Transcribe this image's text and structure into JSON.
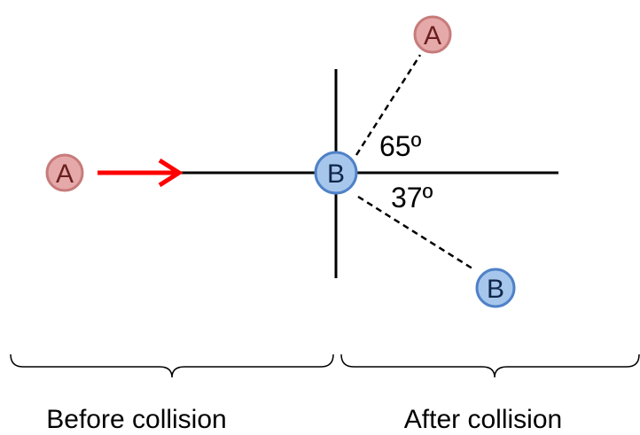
{
  "balls": {
    "a_before": {
      "label": "A"
    },
    "b_collision": {
      "label": "B"
    },
    "a_after": {
      "label": "A"
    },
    "b_after": {
      "label": "B"
    }
  },
  "angles": {
    "a_angle": "65º",
    "b_angle": "37º"
  },
  "captions": {
    "before": "Before collision",
    "after": "After collision"
  },
  "colors": {
    "ball_a_fill": "#e6a9a9",
    "ball_a_stroke": "#c77b7b",
    "ball_a_text": "#6b1f1f",
    "ball_b_fill": "#a7c6ec",
    "ball_b_stroke": "#4f81c7",
    "ball_b_text": "#10264a",
    "arrow": "#ff0000",
    "lines": "#000000"
  }
}
